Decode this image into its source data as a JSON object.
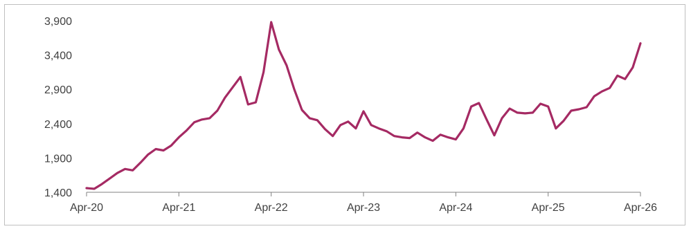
{
  "colors": {
    "series": "#a52a63",
    "axis": "#808080",
    "frame": "#bfbfbf",
    "text": "#404040"
  },
  "chart_data": {
    "type": "line",
    "title": "",
    "xlabel": "",
    "ylabel": "",
    "ylim": [
      1400,
      3900
    ],
    "y_ticks": [
      "1,400",
      "1,900",
      "2,400",
      "2,900",
      "3,400",
      "3,900"
    ],
    "y_tick_values": [
      1400,
      1900,
      2400,
      2900,
      3400,
      3900
    ],
    "x_ticks": [
      "Apr-20",
      "Apr-21",
      "Apr-22",
      "Apr-23",
      "Apr-24",
      "Apr-25",
      "Apr-26"
    ],
    "x_range": [
      "Apr-20",
      "Apr-26"
    ],
    "grid": false,
    "legend": "none",
    "series": [
      {
        "points": [
          [
            "2020-04",
            1460
          ],
          [
            "2020-05",
            1450
          ],
          [
            "2020-06",
            1520
          ],
          [
            "2020-07",
            1600
          ],
          [
            "2020-08",
            1680
          ],
          [
            "2020-09",
            1740
          ],
          [
            "2020-10",
            1720
          ],
          [
            "2020-11",
            1830
          ],
          [
            "2020-12",
            1950
          ],
          [
            "2021-01",
            2030
          ],
          [
            "2021-02",
            2010
          ],
          [
            "2021-03",
            2080
          ],
          [
            "2021-04",
            2200
          ],
          [
            "2021-05",
            2300
          ],
          [
            "2021-06",
            2420
          ],
          [
            "2021-07",
            2460
          ],
          [
            "2021-08",
            2480
          ],
          [
            "2021-09",
            2590
          ],
          [
            "2021-10",
            2780
          ],
          [
            "2021-11",
            2930
          ],
          [
            "2021-12",
            3080
          ],
          [
            "2022-01",
            2680
          ],
          [
            "2022-02",
            2710
          ],
          [
            "2022-03",
            3150
          ],
          [
            "2022-04",
            3880
          ],
          [
            "2022-05",
            3480
          ],
          [
            "2022-06",
            3250
          ],
          [
            "2022-07",
            2900
          ],
          [
            "2022-08",
            2600
          ],
          [
            "2022-09",
            2480
          ],
          [
            "2022-10",
            2450
          ],
          [
            "2022-11",
            2320
          ],
          [
            "2022-12",
            2220
          ],
          [
            "2023-01",
            2380
          ],
          [
            "2023-02",
            2430
          ],
          [
            "2023-03",
            2330
          ],
          [
            "2023-04",
            2580
          ],
          [
            "2023-05",
            2380
          ],
          [
            "2023-06",
            2330
          ],
          [
            "2023-07",
            2290
          ],
          [
            "2023-08",
            2220
          ],
          [
            "2023-09",
            2200
          ],
          [
            "2023-10",
            2190
          ],
          [
            "2023-11",
            2270
          ],
          [
            "2023-12",
            2200
          ],
          [
            "2024-01",
            2150
          ],
          [
            "2024-02",
            2240
          ],
          [
            "2024-03",
            2200
          ],
          [
            "2024-04",
            2170
          ],
          [
            "2024-05",
            2330
          ],
          [
            "2024-06",
            2650
          ],
          [
            "2024-07",
            2700
          ],
          [
            "2024-08",
            2460
          ],
          [
            "2024-09",
            2230
          ],
          [
            "2024-10",
            2480
          ],
          [
            "2024-11",
            2620
          ],
          [
            "2024-12",
            2560
          ],
          [
            "2025-01",
            2550
          ],
          [
            "2025-02",
            2560
          ],
          [
            "2025-03",
            2690
          ],
          [
            "2025-04",
            2650
          ],
          [
            "2025-05",
            2330
          ],
          [
            "2025-06",
            2440
          ],
          [
            "2025-07",
            2590
          ],
          [
            "2025-08",
            2610
          ],
          [
            "2025-09",
            2640
          ],
          [
            "2025-10",
            2800
          ],
          [
            "2025-11",
            2870
          ],
          [
            "2025-12",
            2920
          ],
          [
            "2026-01",
            3100
          ],
          [
            "2026-02",
            3050
          ],
          [
            "2026-03",
            3220
          ],
          [
            "2026-04",
            3570
          ]
        ]
      }
    ]
  }
}
